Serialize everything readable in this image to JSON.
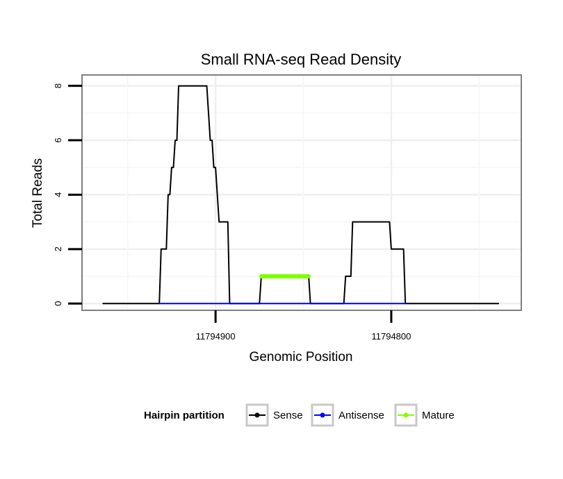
{
  "chart_data": {
    "type": "line",
    "title": "Small RNA-seq Read Density",
    "xlabel": "Genomic Position",
    "ylabel": "Total Reads",
    "x_reversed": true,
    "xlim": [
      11794976,
      11794726
    ],
    "ylim": [
      -0.25,
      8.4
    ],
    "x_ticks": [
      11794900,
      11794800
    ],
    "x_tick_labels": [
      "11794900",
      "11794800"
    ],
    "y_ticks": [
      0,
      2,
      4,
      6,
      8
    ],
    "y_tick_labels": [
      "0",
      "2",
      "4",
      "6",
      "8"
    ],
    "grid": true,
    "legend": {
      "title": "Hairpin partition",
      "position": "bottom",
      "entries": [
        {
          "label": "Sense",
          "color": "#000000"
        },
        {
          "label": "Antisense",
          "color": "#0000ff"
        },
        {
          "label": "Mature",
          "color": "#7fff00"
        }
      ]
    },
    "series": [
      {
        "name": "Sense",
        "color": "#000000",
        "points": [
          [
            11794964,
            0
          ],
          [
            11794932,
            0
          ],
          [
            11794931,
            2
          ],
          [
            11794928,
            2
          ],
          [
            11794927,
            4
          ],
          [
            11794926,
            4
          ],
          [
            11794925,
            5
          ],
          [
            11794924,
            5
          ],
          [
            11794923,
            6
          ],
          [
            11794922,
            6
          ],
          [
            11794921,
            8
          ],
          [
            11794905,
            8
          ],
          [
            11794903,
            6
          ],
          [
            11794902,
            6
          ],
          [
            11794901,
            5
          ],
          [
            11794900,
            5
          ],
          [
            11794898,
            3
          ],
          [
            11794893,
            3
          ],
          [
            11794892,
            0
          ],
          [
            11794875,
            0
          ],
          [
            11794874,
            1
          ],
          [
            11794847,
            1
          ],
          [
            11794846,
            0
          ],
          [
            11794827,
            0
          ],
          [
            11794826,
            1
          ],
          [
            11794823,
            1
          ],
          [
            11794822,
            3
          ],
          [
            11794801,
            3
          ],
          [
            11794800,
            2
          ],
          [
            11794793,
            2
          ],
          [
            11794792,
            0
          ],
          [
            11794739,
            0
          ]
        ]
      },
      {
        "name": "Antisense",
        "color": "#0000ff",
        "points": [
          [
            11794932,
            0
          ],
          [
            11794892,
            0
          ],
          [
            11794875,
            0
          ],
          [
            11794846,
            0
          ],
          [
            11794826,
            0
          ],
          [
            11794792,
            0
          ]
        ]
      },
      {
        "name": "Mature",
        "color": "#7fff00",
        "points": [
          [
            11794874,
            1
          ],
          [
            11794847,
            1
          ]
        ]
      }
    ]
  }
}
